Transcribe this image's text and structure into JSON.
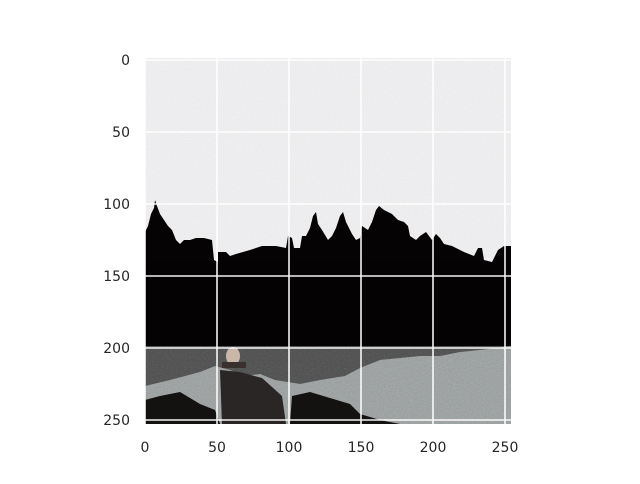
{
  "image_axes": {
    "x_ticks": [
      "0",
      "50",
      "100",
      "150",
      "200",
      "250"
    ],
    "y_ticks": [
      "0",
      "50",
      "100",
      "150",
      "200",
      "250"
    ],
    "x_range": [
      0,
      255
    ],
    "y_range": [
      0,
      255
    ],
    "grid": true,
    "image_description_tags": [
      "sky",
      "silhouette-skyline",
      "trees",
      "water",
      "boat"
    ]
  },
  "colors": {
    "sky": "#f3f1f6",
    "silhouette": "#050303",
    "water_light": "#8a8f8f",
    "water_dark": "#151212",
    "grid": "#ffffff",
    "tick_text": "#262626"
  }
}
